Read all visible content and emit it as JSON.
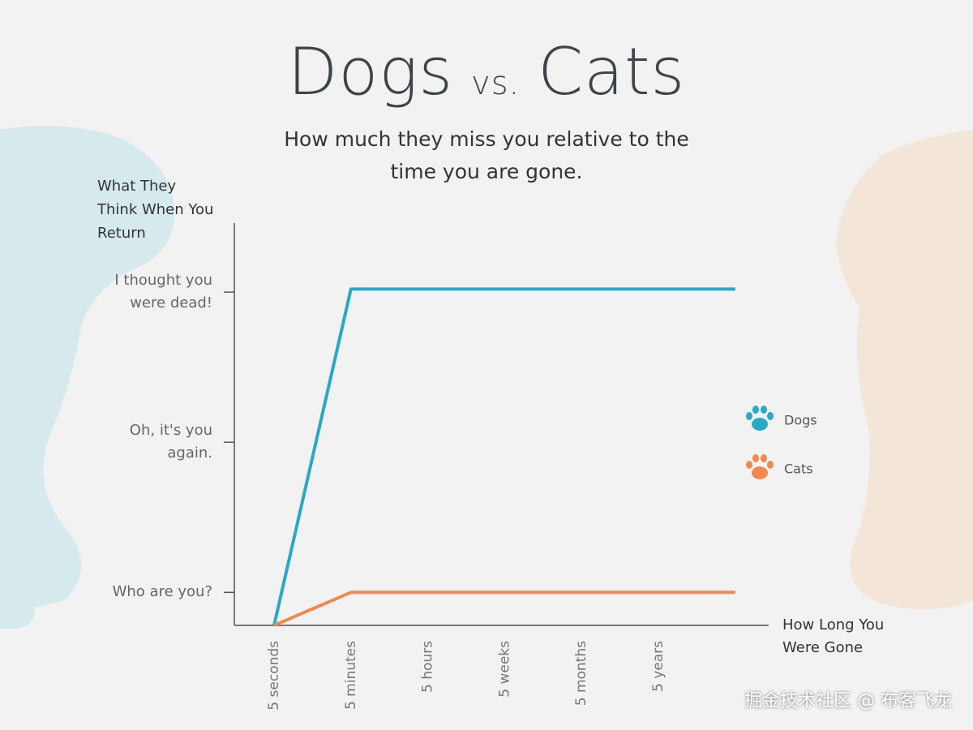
{
  "chart_data": {
    "type": "line",
    "title_parts": [
      "Dogs",
      "vs.",
      "Cats"
    ],
    "subtitle": "How much they miss you relative to the time you are gone.",
    "y_label": "What They Think When You Return",
    "x_label": "How Long You Were Gone",
    "categories": [
      "5 seconds",
      "5 minutes",
      "5 hours",
      "5 weeks",
      "5 months",
      "5 years",
      null
    ],
    "series": [
      {
        "name": "Dogs",
        "color": "#2ba8c8",
        "values": [
          0.78,
          3.02,
          3.02,
          3.02,
          3.02,
          3.02,
          3.02
        ]
      },
      {
        "name": "Cats",
        "color": "#ee8a50",
        "values": [
          0.78,
          1,
          1,
          1,
          1,
          1,
          1
        ]
      }
    ],
    "ylim": [
      0.78,
      3.46
    ],
    "yticks": [
      {
        "value": 1,
        "label": "Who are you?"
      },
      {
        "value": 2,
        "label": "Oh, it's you again."
      },
      {
        "value": 3,
        "label": "I thought you were dead!"
      }
    ],
    "legend": "right",
    "watermark": "掘金技术社区 @ 布客飞龙"
  }
}
